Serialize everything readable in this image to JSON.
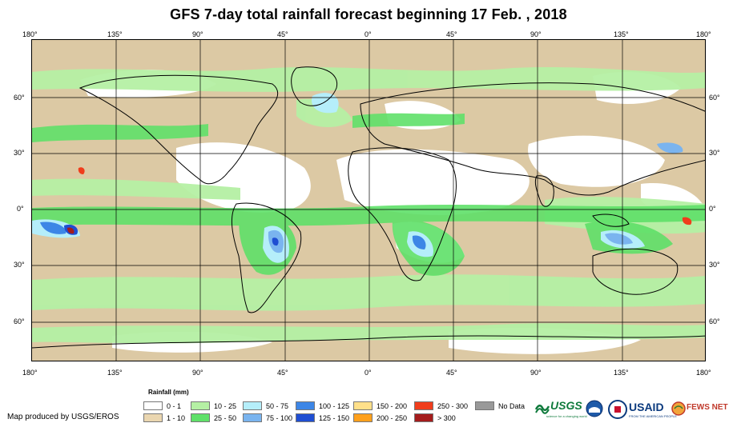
{
  "title": "GFS 7-day total rainfall forecast beginning 17 Feb. , 2018",
  "axes": {
    "top_lon_labels": [
      "180°",
      "135°",
      "90°",
      "45°",
      "0°",
      "45°",
      "90°",
      "135°",
      "180°"
    ],
    "bottom_lon_labels": [
      "180°",
      "135°",
      "90°",
      "45°",
      "0°",
      "45°",
      "90°",
      "135°",
      "180°"
    ],
    "left_lat_labels": [
      "60°",
      "30°",
      "0°",
      "30°",
      "60°"
    ],
    "right_lat_labels": [
      "60°",
      "30°",
      "0°",
      "30°",
      "60°"
    ]
  },
  "legend": {
    "title": "Rainfall (mm)",
    "items": [
      {
        "label": "0 - 1",
        "color": "#ffffff"
      },
      {
        "label": "1 - 10",
        "color": "#ead6b0"
      },
      {
        "label": "10 - 25",
        "color": "#b5f0a4"
      },
      {
        "label": "25 - 50",
        "color": "#5fe069"
      },
      {
        "label": "50 - 75",
        "color": "#b5eefa"
      },
      {
        "label": "75 - 100",
        "color": "#7ab4ef"
      },
      {
        "label": "100 - 125",
        "color": "#3d86e6"
      },
      {
        "label": "125 - 150",
        "color": "#1f4ed2"
      },
      {
        "label": "150 - 200",
        "color": "#ffe08a"
      },
      {
        "label": "200 - 250",
        "color": "#ffa01c"
      },
      {
        "label": "250 - 300",
        "color": "#f03d1c"
      },
      {
        "label": "> 300",
        "color": "#a41c1c"
      },
      {
        "label": "No Data",
        "color": "#999999"
      }
    ]
  },
  "credit": "Map produced by USGS/EROS",
  "logos": {
    "usgs": "USGS",
    "usgs_tagline": "science for a changing world",
    "usaid": "USAID",
    "usaid_tagline": "FROM THE AMERICAN PEOPLE",
    "fewsnet": "FEWS NET"
  }
}
